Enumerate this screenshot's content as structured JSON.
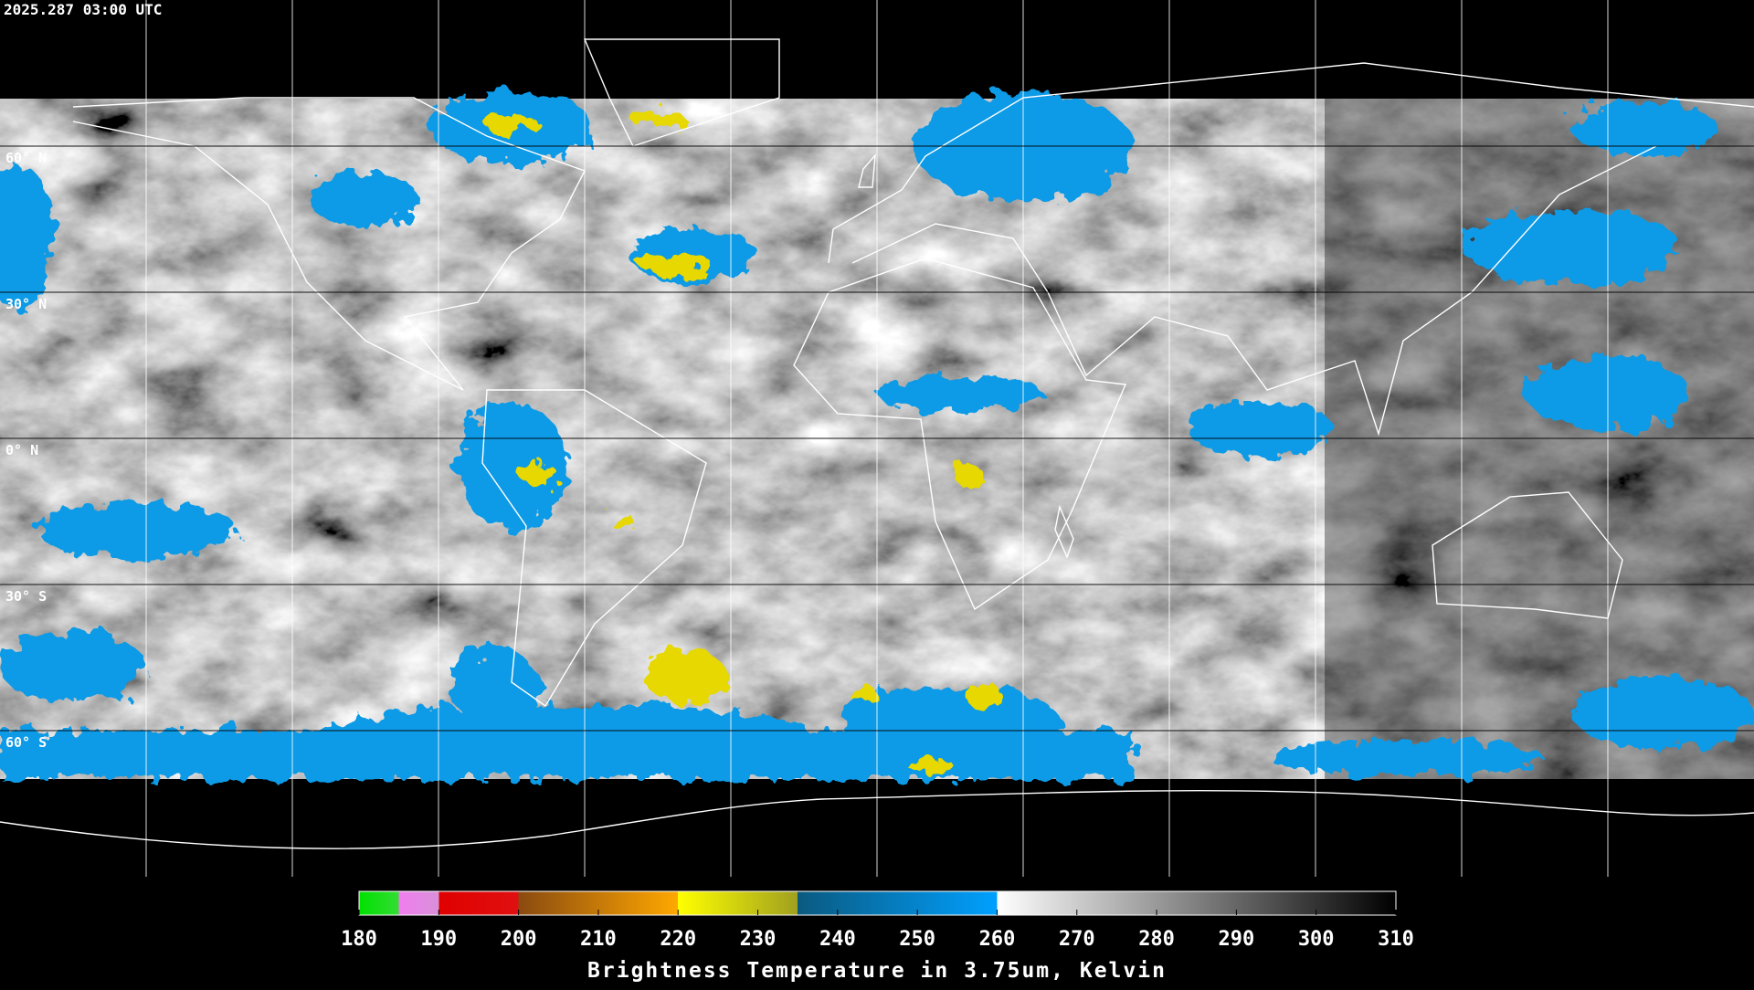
{
  "header": {
    "timestamp": "2025.287 03:00 UTC"
  },
  "map": {
    "latitude_labels": [
      "60° N",
      "30° N",
      "0° N",
      "30° S",
      "60° S"
    ]
  },
  "colorbar": {
    "ticks": [
      180,
      190,
      200,
      210,
      220,
      230,
      240,
      250,
      260,
      270,
      280,
      290,
      300,
      310
    ],
    "title": "Brightness Temperature in 3.75um, Kelvin"
  }
}
